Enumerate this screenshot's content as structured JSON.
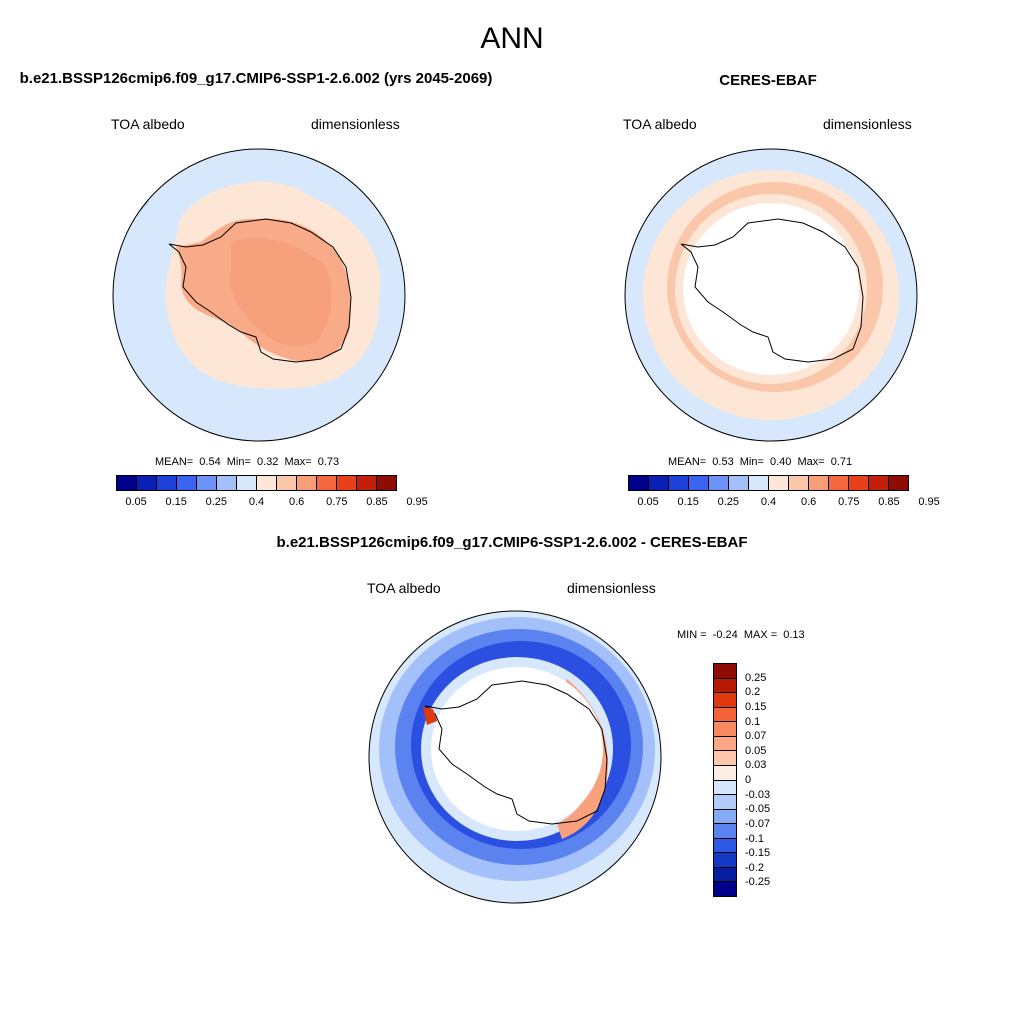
{
  "title": "ANN",
  "panels": [
    {
      "title": "b.e21.BSSP126cmip6.f09_g17.CMIP6-SSP1-2.6.002 (yrs 2045-2069)",
      "variable": "TOA albedo",
      "units": "dimensionless",
      "stats": {
        "mean_label": "MEAN=",
        "mean": "0.54",
        "min_label": "Min=",
        "min": "0.32",
        "max_label": "Max=",
        "max": "0.73"
      }
    },
    {
      "title": "CERES-EBAF",
      "variable": "TOA albedo",
      "units": "dimensionless",
      "stats": {
        "mean_label": "MEAN=",
        "mean": "0.53",
        "min_label": "Min=",
        "min": "0.40",
        "max_label": "Max=",
        "max": "0.71"
      }
    },
    {
      "title": "b.e21.BSSP126cmip6.f09_g17.CMIP6-SSP1-2.6.002 - CERES-EBAF",
      "variable": "TOA albedo",
      "units": "dimensionless",
      "stats": {
        "min_label": "MIN =",
        "min": "-0.24",
        "max_label": "MAX =",
        "max": "0.13"
      }
    }
  ],
  "colorbar_abs": {
    "colors": [
      "#00008b",
      "#0a1fb4",
      "#1c40d8",
      "#3a64ee",
      "#6c92f6",
      "#a4c0fb",
      "#d7e8fc",
      "#fde6d6",
      "#fbc7ab",
      "#f99c78",
      "#f5683e",
      "#e7401b",
      "#c11f0a",
      "#8e0c04"
    ],
    "ticks": [
      "0.05",
      "0.15",
      "0.25",
      "0.4",
      "0.6",
      "0.75",
      "0.85",
      "0.95"
    ]
  },
  "colorbar_diff": {
    "colors_top_to_bottom": [
      "#8e0c04",
      "#b61a05",
      "#e0380f",
      "#f36337",
      "#f8885e",
      "#fba784",
      "#fdc8ab",
      "#fdeee3",
      "#d5e6fc",
      "#b1cdf9",
      "#85abf5",
      "#5a83ef",
      "#2f58e4",
      "#1339c7",
      "#071ea1",
      "#00008b"
    ],
    "ticks": [
      "0.25",
      "0.2",
      "0.15",
      "0.1",
      "0.07",
      "0.05",
      "0.03",
      "0",
      "-0.03",
      "-0.05",
      "-0.07",
      "-0.1",
      "-0.15",
      "-0.2",
      "-0.25"
    ]
  },
  "map_colors": {
    "ocean": "#d7e8fc",
    "near_ice": "#fde6d6",
    "ice_sheet": "#f9ab89",
    "no_data": "#ffffff",
    "diff_light_blue": "#a4c0fb",
    "diff_mid_blue": "#5a83ef",
    "diff_dark_blue": "#2b4fe0",
    "diff_red": "#f36337",
    "diff_orange": "#f9a07d"
  }
}
